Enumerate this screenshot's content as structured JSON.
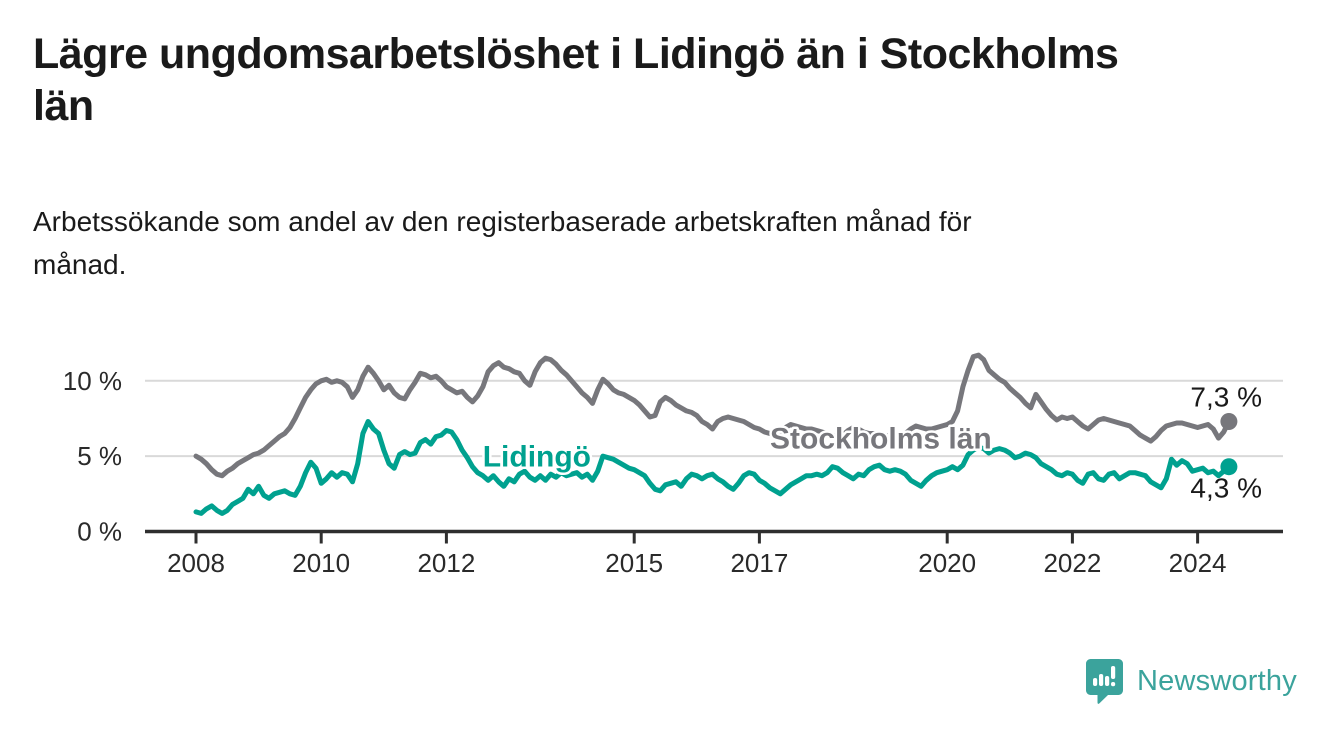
{
  "header": {
    "title": "Lägre ungdomsarbetslöshet i Lidingö än i Stockholms län",
    "title_display": "Lägre ungdomsarbetslöshet i Lidingö än i Stockholms\nlän",
    "subtitle": "Arbetssökande som andel av den registerbaserade arbetskraften månad för\nmånad."
  },
  "branding": {
    "logo_text": "Newsworthy",
    "logo_icon": "newsworthy-speech-bubble-bar-chart-icon",
    "brand_color": "#3ba39c"
  },
  "chart_data": {
    "type": "line",
    "unit": "%",
    "x_start": {
      "year": 2008,
      "month": 1
    },
    "x_end": {
      "year": 2024,
      "month": 7
    },
    "x_ticks": [
      2008,
      2010,
      2012,
      2015,
      2017,
      2020,
      2022,
      2024
    ],
    "y_ticks": [
      {
        "value": 0,
        "label": "0 %"
      },
      {
        "value": 5,
        "label": "5 %"
      },
      {
        "value": 10,
        "label": "10 %"
      }
    ],
    "ylim": [
      0,
      12.4
    ],
    "grid": true,
    "colors": {
      "axis": "#2f2f2f",
      "grid": "#d9d9d9",
      "end_label_text": "#1a1a1a"
    },
    "series": [
      {
        "name": "Stockholms län",
        "color": "#77777c",
        "end_label": "7,3 %",
        "end_label_position": "above",
        "label_anchor": {
          "year": 2017.17,
          "value": 5.5
        },
        "values": [
          5.0,
          4.8,
          4.5,
          4.1,
          3.8,
          3.7,
          4.0,
          4.2,
          4.5,
          4.7,
          4.9,
          5.1,
          5.2,
          5.4,
          5.7,
          6.0,
          6.3,
          6.5,
          6.9,
          7.5,
          8.2,
          8.9,
          9.4,
          9.8,
          10.0,
          10.1,
          9.9,
          10.0,
          9.9,
          9.6,
          8.9,
          9.4,
          10.3,
          10.9,
          10.5,
          10.0,
          9.4,
          9.7,
          9.2,
          8.9,
          8.8,
          9.4,
          9.9,
          10.5,
          10.4,
          10.2,
          10.3,
          10.0,
          9.6,
          9.4,
          9.2,
          9.3,
          8.9,
          8.6,
          9.0,
          9.6,
          10.6,
          11.0,
          11.2,
          10.9,
          10.8,
          10.6,
          10.5,
          10.0,
          9.7,
          10.6,
          11.2,
          11.5,
          11.4,
          11.1,
          10.7,
          10.4,
          10.0,
          9.6,
          9.2,
          8.9,
          8.5,
          9.4,
          10.1,
          9.8,
          9.4,
          9.2,
          9.1,
          8.9,
          8.7,
          8.4,
          8.0,
          7.6,
          7.7,
          8.6,
          8.9,
          8.7,
          8.4,
          8.2,
          8.0,
          7.9,
          7.7,
          7.3,
          7.1,
          6.8,
          7.3,
          7.5,
          7.6,
          7.5,
          7.4,
          7.3,
          7.1,
          6.9,
          6.8,
          6.6,
          6.5,
          6.4,
          6.5,
          6.9,
          7.1,
          7.0,
          6.9,
          6.8,
          6.8,
          6.7,
          6.6,
          6.5,
          6.4,
          6.3,
          6.4,
          6.7,
          6.9,
          6.8,
          6.6,
          6.5,
          6.5,
          6.4,
          6.4,
          6.3,
          6.3,
          6.4,
          6.5,
          6.8,
          7.0,
          6.9,
          6.8,
          6.8,
          6.9,
          7.0,
          7.1,
          7.3,
          8.0,
          9.6,
          10.7,
          11.6,
          11.7,
          11.4,
          10.7,
          10.4,
          10.1,
          9.9,
          9.5,
          9.2,
          8.9,
          8.5,
          8.2,
          9.1,
          8.6,
          8.1,
          7.7,
          7.4,
          7.6,
          7.5,
          7.6,
          7.3,
          7.0,
          6.8,
          7.1,
          7.4,
          7.5,
          7.4,
          7.3,
          7.2,
          7.1,
          7.0,
          6.7,
          6.4,
          6.2,
          6.0,
          6.3,
          6.7,
          7.0,
          7.1,
          7.2,
          7.2,
          7.1,
          7.0,
          6.9,
          7.0,
          7.1,
          6.8,
          6.2,
          6.6,
          7.3
        ]
      },
      {
        "name": "Lidingö",
        "color": "#00a18f",
        "end_label": "4,3 %",
        "end_label_position": "below",
        "label_anchor": {
          "year": 2012.58,
          "value": 4.3
        },
        "values": [
          1.3,
          1.2,
          1.5,
          1.7,
          1.4,
          1.2,
          1.4,
          1.8,
          2.0,
          2.2,
          2.8,
          2.5,
          3.0,
          2.4,
          2.2,
          2.5,
          2.6,
          2.7,
          2.5,
          2.4,
          3.0,
          3.9,
          4.6,
          4.2,
          3.2,
          3.5,
          3.9,
          3.6,
          3.9,
          3.8,
          3.3,
          4.5,
          6.5,
          7.3,
          6.8,
          6.5,
          5.4,
          4.5,
          4.2,
          5.1,
          5.3,
          5.1,
          5.2,
          5.9,
          6.1,
          5.8,
          6.3,
          6.4,
          6.7,
          6.6,
          6.1,
          5.4,
          4.9,
          4.3,
          3.9,
          3.7,
          3.4,
          3.7,
          3.3,
          3.0,
          3.5,
          3.3,
          3.8,
          4.0,
          3.6,
          3.4,
          3.7,
          3.4,
          3.8,
          3.6,
          3.9,
          3.7,
          3.8,
          3.9,
          3.6,
          3.8,
          3.4,
          4.0,
          5.0,
          4.9,
          4.8,
          4.6,
          4.4,
          4.2,
          4.1,
          3.9,
          3.7,
          3.2,
          2.8,
          2.7,
          3.1,
          3.2,
          3.3,
          3.0,
          3.5,
          3.8,
          3.7,
          3.5,
          3.7,
          3.8,
          3.5,
          3.3,
          3.0,
          2.8,
          3.2,
          3.7,
          3.9,
          3.8,
          3.4,
          3.2,
          2.9,
          2.7,
          2.5,
          2.8,
          3.1,
          3.3,
          3.5,
          3.7,
          3.7,
          3.8,
          3.7,
          3.9,
          4.3,
          4.2,
          3.9,
          3.7,
          3.5,
          3.8,
          3.7,
          4.1,
          4.3,
          4.4,
          4.1,
          4.0,
          4.1,
          4.0,
          3.8,
          3.4,
          3.2,
          3.0,
          3.4,
          3.7,
          3.9,
          4.0,
          4.1,
          4.3,
          4.1,
          4.4,
          5.1,
          5.4,
          5.6,
          5.5,
          5.2,
          5.4,
          5.5,
          5.4,
          5.2,
          4.9,
          5.0,
          5.2,
          5.1,
          4.9,
          4.5,
          4.3,
          4.1,
          3.8,
          3.7,
          3.9,
          3.8,
          3.4,
          3.2,
          3.8,
          3.9,
          3.5,
          3.4,
          3.8,
          3.9,
          3.5,
          3.7,
          3.9,
          3.9,
          3.8,
          3.7,
          3.3,
          3.1,
          2.9,
          3.5,
          4.8,
          4.4,
          4.7,
          4.5,
          4.0,
          4.1,
          4.2,
          3.9,
          4.0,
          3.7,
          4.0,
          4.3
        ]
      }
    ]
  }
}
